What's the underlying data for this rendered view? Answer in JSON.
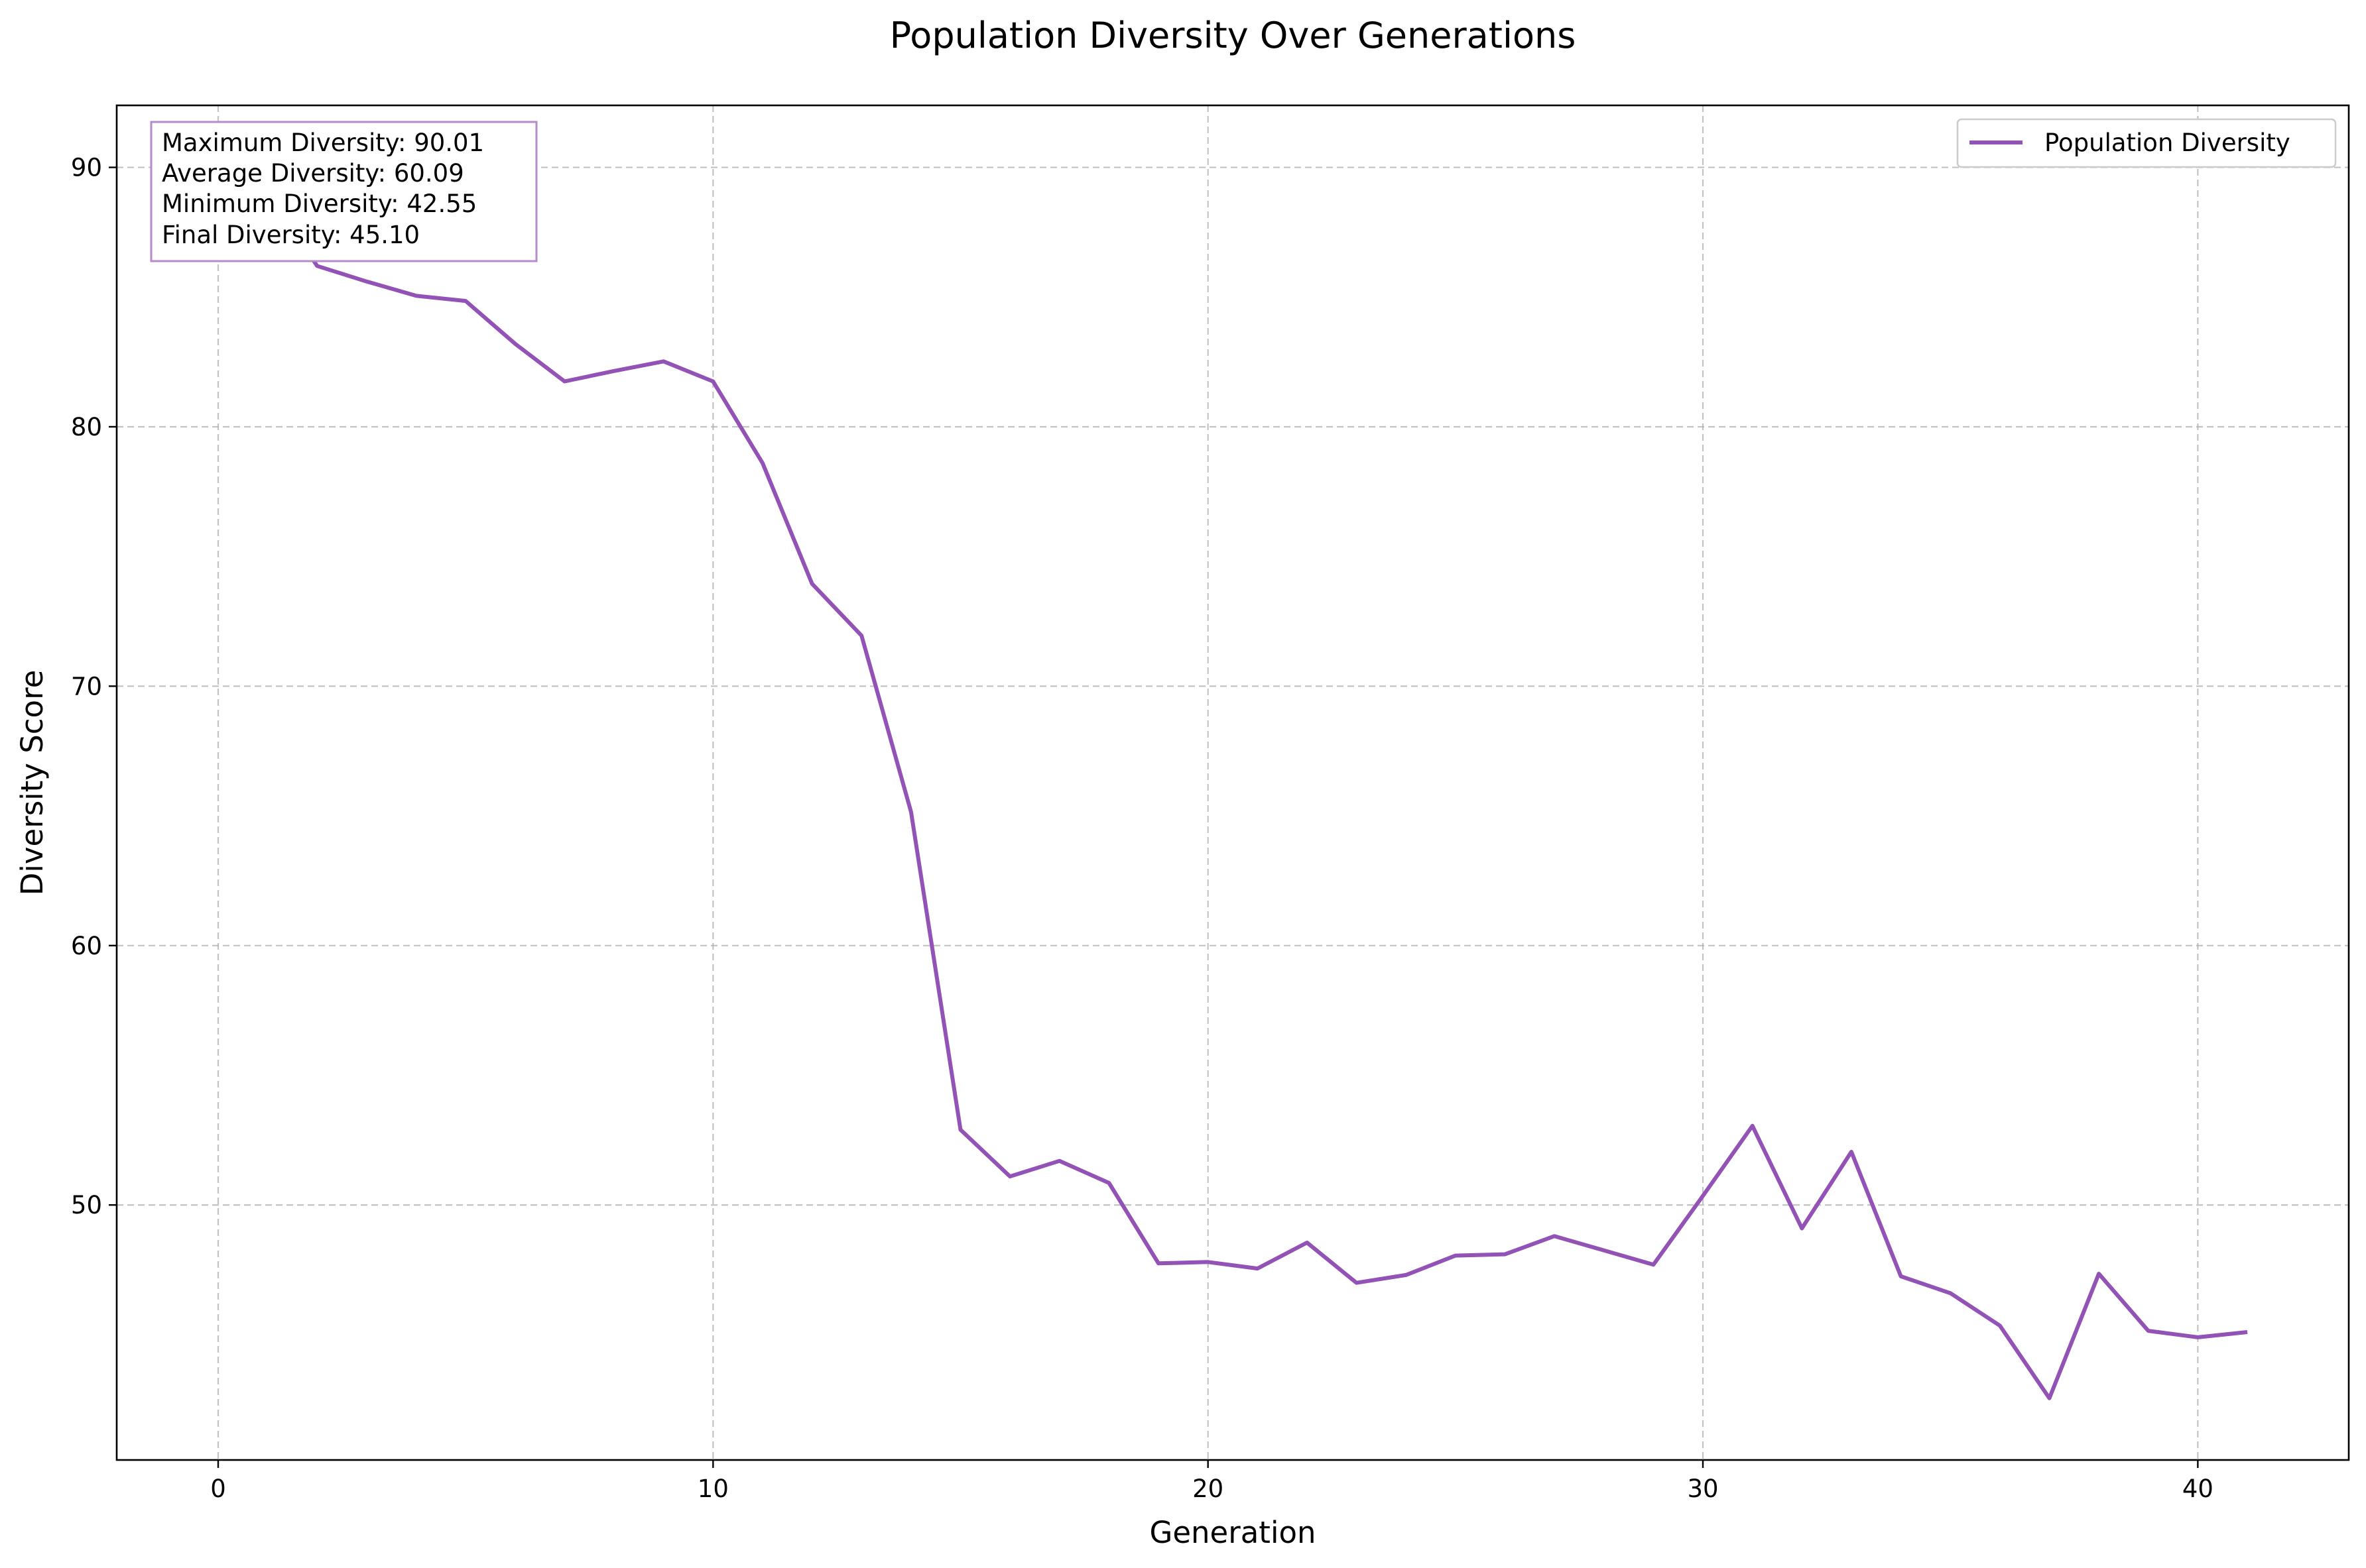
{
  "chart_data": {
    "type": "line",
    "title": "Population Diversity Over Generations",
    "xlabel": "Generation",
    "ylabel": "Diversity Score",
    "xlim": [
      -2.05,
      43.05
    ],
    "ylim": [
      40.17,
      92.39
    ],
    "xticks": [
      0,
      10,
      20,
      30,
      40
    ],
    "yticks": [
      50,
      60,
      70,
      80,
      90
    ],
    "grid": true,
    "legend_position": "top-right",
    "series": [
      {
        "name": "Population Diversity",
        "color": "#9352B6",
        "x": [
          0,
          1,
          2,
          3,
          4,
          5,
          6,
          7,
          8,
          9,
          10,
          11,
          12,
          13,
          14,
          15,
          16,
          17,
          18,
          19,
          20,
          21,
          22,
          23,
          24,
          25,
          26,
          27,
          28,
          29,
          30,
          31,
          32,
          33,
          34,
          35,
          36,
          37,
          38,
          39,
          40,
          41
        ],
        "y": [
          90.01,
          89.0,
          86.2,
          85.6,
          85.05,
          84.85,
          83.2,
          81.75,
          82.15,
          82.52,
          81.75,
          78.6,
          73.95,
          71.95,
          65.15,
          52.9,
          51.1,
          51.7,
          50.85,
          47.75,
          47.8,
          47.55,
          48.55,
          47.0,
          47.3,
          48.05,
          48.1,
          48.8,
          48.25,
          47.7,
          50.35,
          53.05,
          49.1,
          52.05,
          47.25,
          46.6,
          45.35,
          42.55,
          47.35,
          45.15,
          44.9,
          45.1
        ]
      }
    ],
    "stats_box": [
      "Maximum Diversity: 90.01",
      "Average Diversity: 60.09",
      "Minimum Diversity: 42.55",
      "Final Diversity: 45.10"
    ]
  }
}
